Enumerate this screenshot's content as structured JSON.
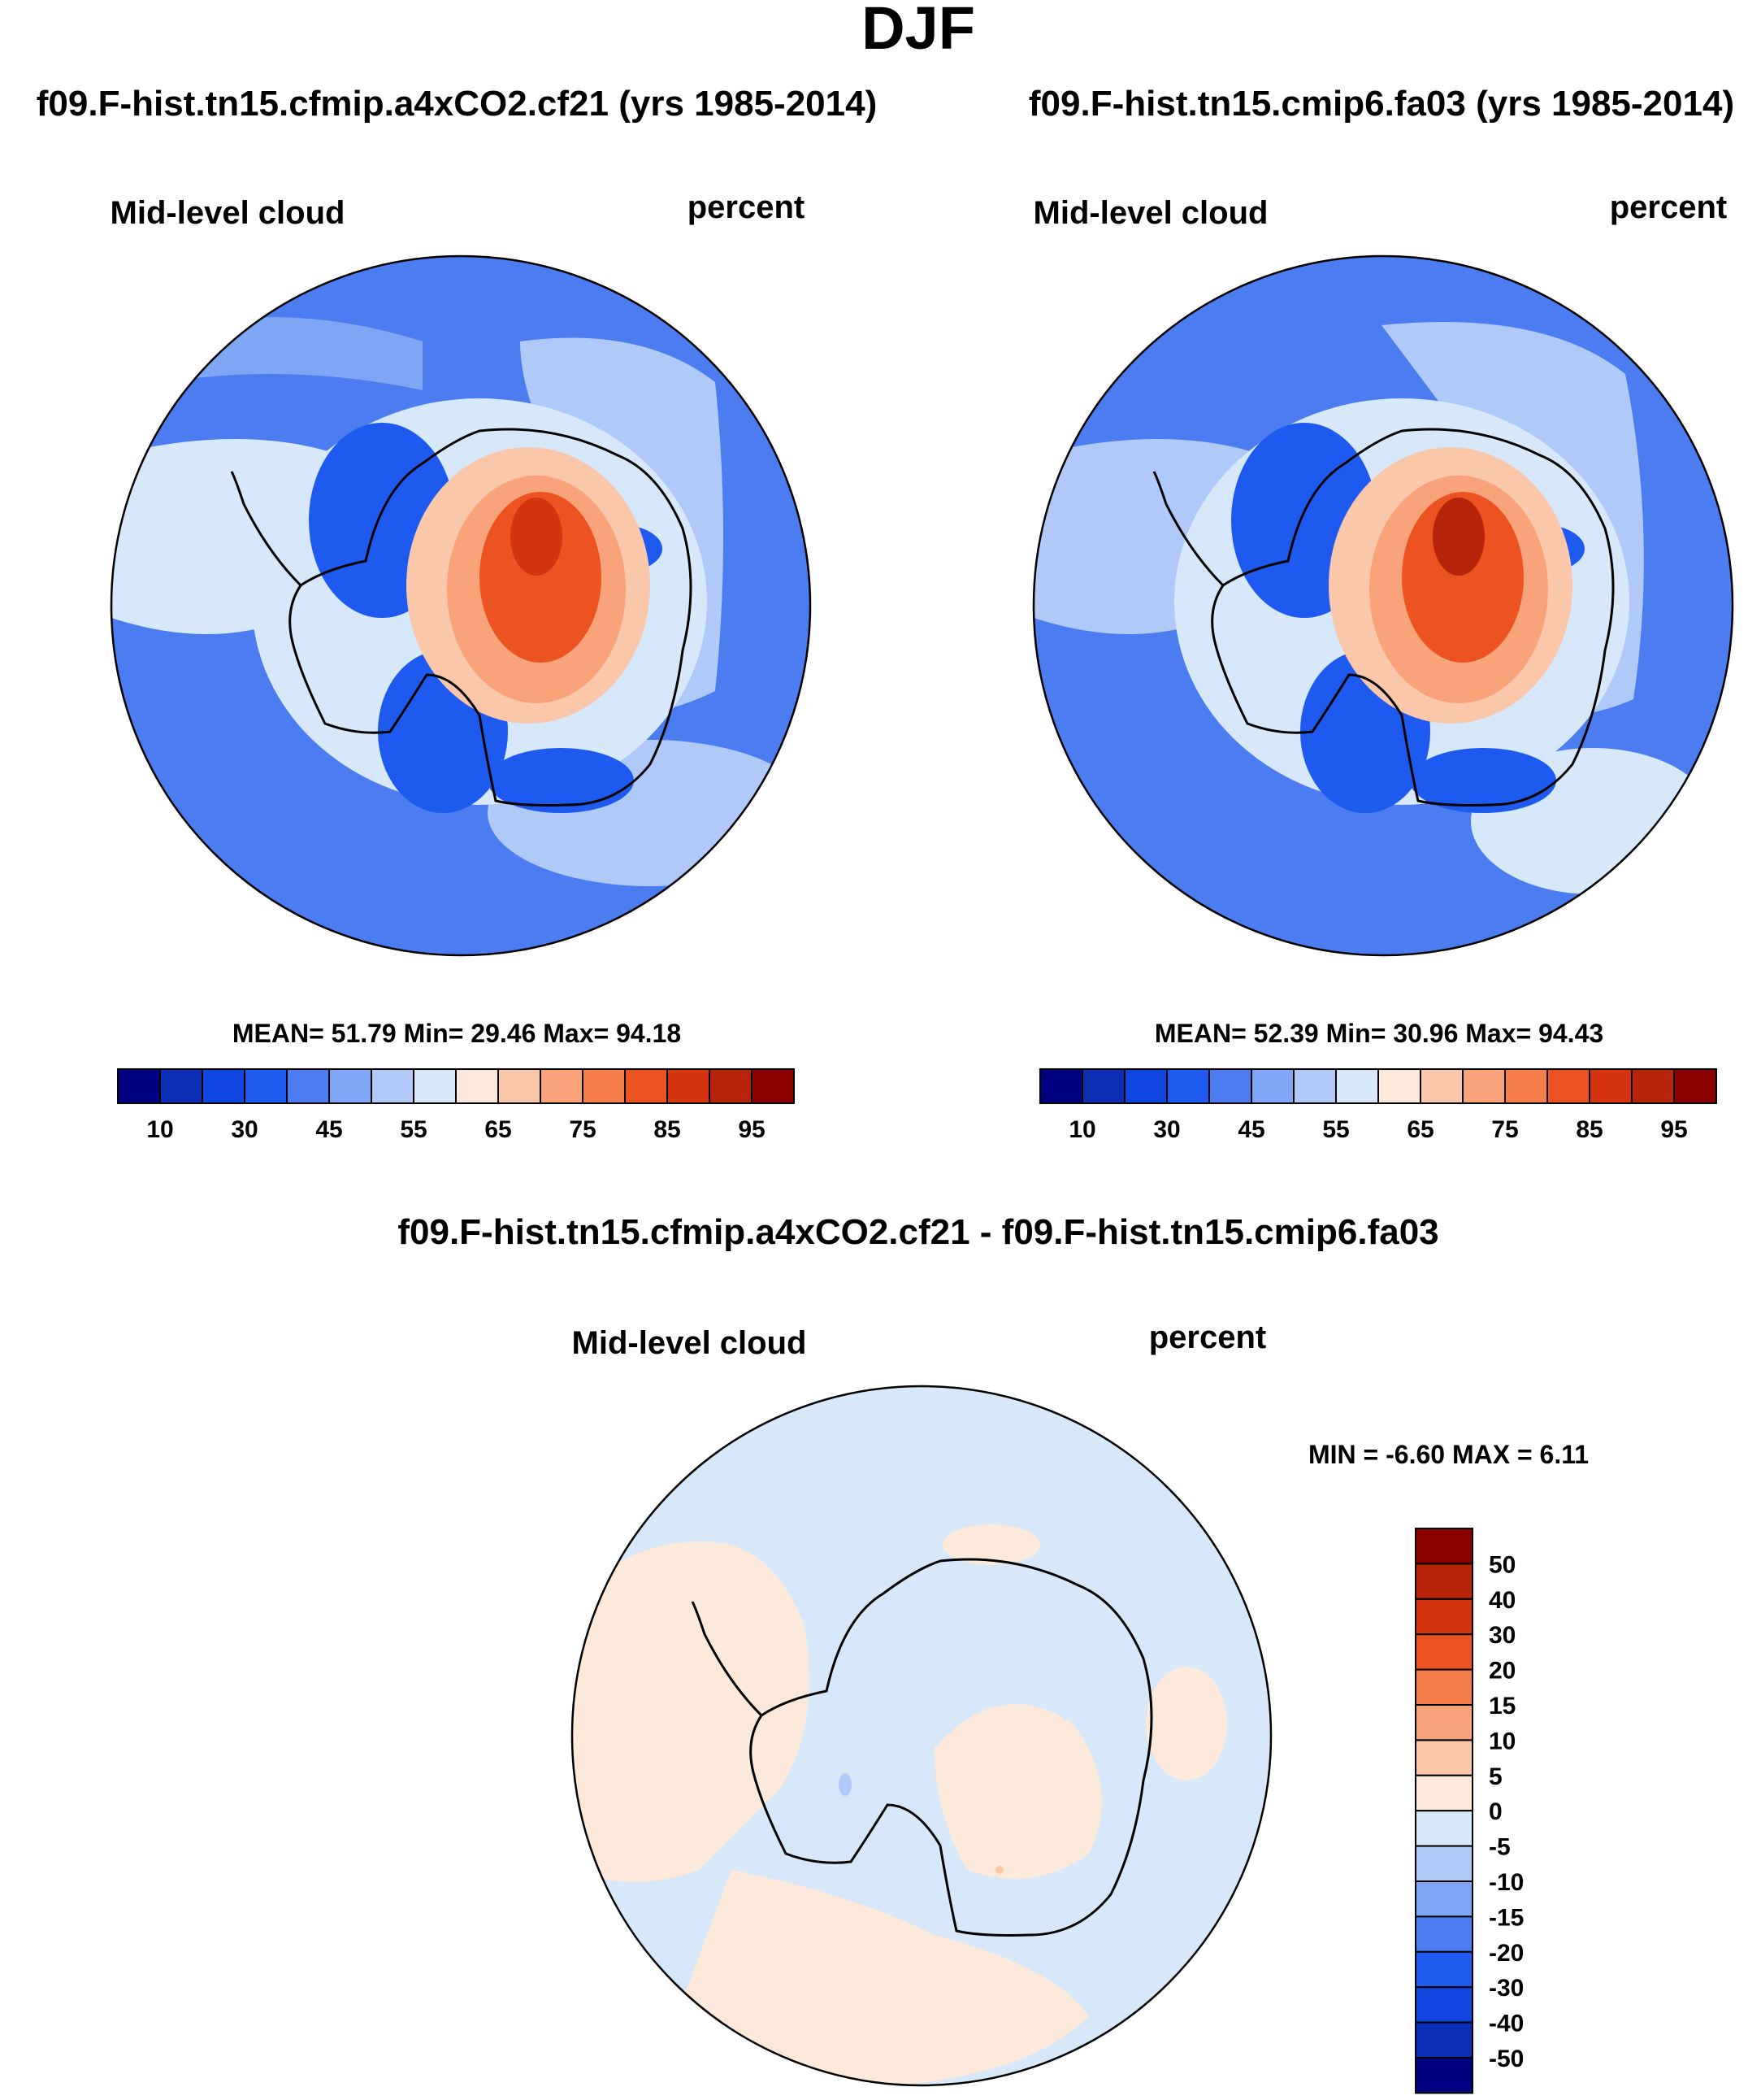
{
  "chart_data": {
    "type": "contour-map",
    "title": "DJF",
    "panels": [
      {
        "id": "test",
        "case_title": "f09.F-hist.tn15.cfmip.a4xCO2.cf21 (yrs 1985-2014)",
        "variable": "Mid-level cloud",
        "units": "percent",
        "stats": {
          "mean_label": "MEAN=",
          "mean": "51.79",
          "min_label": "Min=",
          "min": "29.46",
          "max_label": "Max=",
          "max": "94.18"
        },
        "levels": [
          5,
          10,
          20,
          30,
          40,
          45,
          50,
          55,
          60,
          65,
          70,
          75,
          80,
          85,
          90,
          95
        ],
        "tick_labels": [
          "10",
          "30",
          "45",
          "55",
          "65",
          "75",
          "85",
          "95"
        ],
        "colors": [
          "#000080",
          "#0a2eb4",
          "#0f46e0",
          "#1e5af0",
          "#4b7cf0",
          "#7ea6f5",
          "#b0c9f8",
          "#d7e8fb",
          "#fde9d9",
          "#fbc7aa",
          "#f8a379",
          "#f57c4b",
          "#ec5222",
          "#d63411",
          "#b7230b",
          "#8b0000"
        ]
      },
      {
        "id": "control",
        "case_title": "f09.F-hist.tn15.cmip6.fa03 (yrs 1985-2014)",
        "variable": "Mid-level cloud",
        "units": "percent",
        "stats": {
          "mean_label": "MEAN=",
          "mean": "52.39",
          "min_label": "Min=",
          "min": "30.96",
          "max_label": "Max=",
          "max": "94.43"
        },
        "levels": [
          5,
          10,
          20,
          30,
          40,
          45,
          50,
          55,
          60,
          65,
          70,
          75,
          80,
          85,
          90,
          95
        ],
        "tick_labels": [
          "10",
          "30",
          "45",
          "55",
          "65",
          "75",
          "85",
          "95"
        ],
        "colors": [
          "#000080",
          "#0a2eb4",
          "#0f46e0",
          "#1e5af0",
          "#4b7cf0",
          "#7ea6f5",
          "#b0c9f8",
          "#d7e8fb",
          "#fde9d9",
          "#fbc7aa",
          "#f8a379",
          "#f57c4b",
          "#ec5222",
          "#d63411",
          "#b7230b",
          "#8b0000"
        ]
      },
      {
        "id": "difference",
        "case_title": "f09.F-hist.tn15.cfmip.a4xCO2.cf21 - f09.F-hist.tn15.cmip6.fa03",
        "variable": "Mid-level cloud",
        "units": "percent",
        "stats": {
          "min_label": "MIN =",
          "min": "-6.60",
          "max_label": "MAX =",
          "max": "6.11"
        },
        "levels": [
          -50,
          -40,
          -30,
          -20,
          -15,
          -10,
          -5,
          0,
          5,
          10,
          15,
          20,
          30,
          40,
          50
        ],
        "tick_labels": [
          "50",
          "40",
          "30",
          "20",
          "15",
          "10",
          "5",
          "0",
          "-5",
          "-10",
          "-15",
          "-20",
          "-30",
          "-40",
          "-50"
        ],
        "colors": [
          "#000080",
          "#0a2eb4",
          "#0f46e0",
          "#1e5af0",
          "#4b7cf0",
          "#7ea6f5",
          "#b0c9f8",
          "#d7e8fb",
          "#fde9d9",
          "#fbc7aa",
          "#f8a379",
          "#f57c4b",
          "#ec5222",
          "#d63411",
          "#b7230b",
          "#8b0000"
        ]
      }
    ]
  }
}
